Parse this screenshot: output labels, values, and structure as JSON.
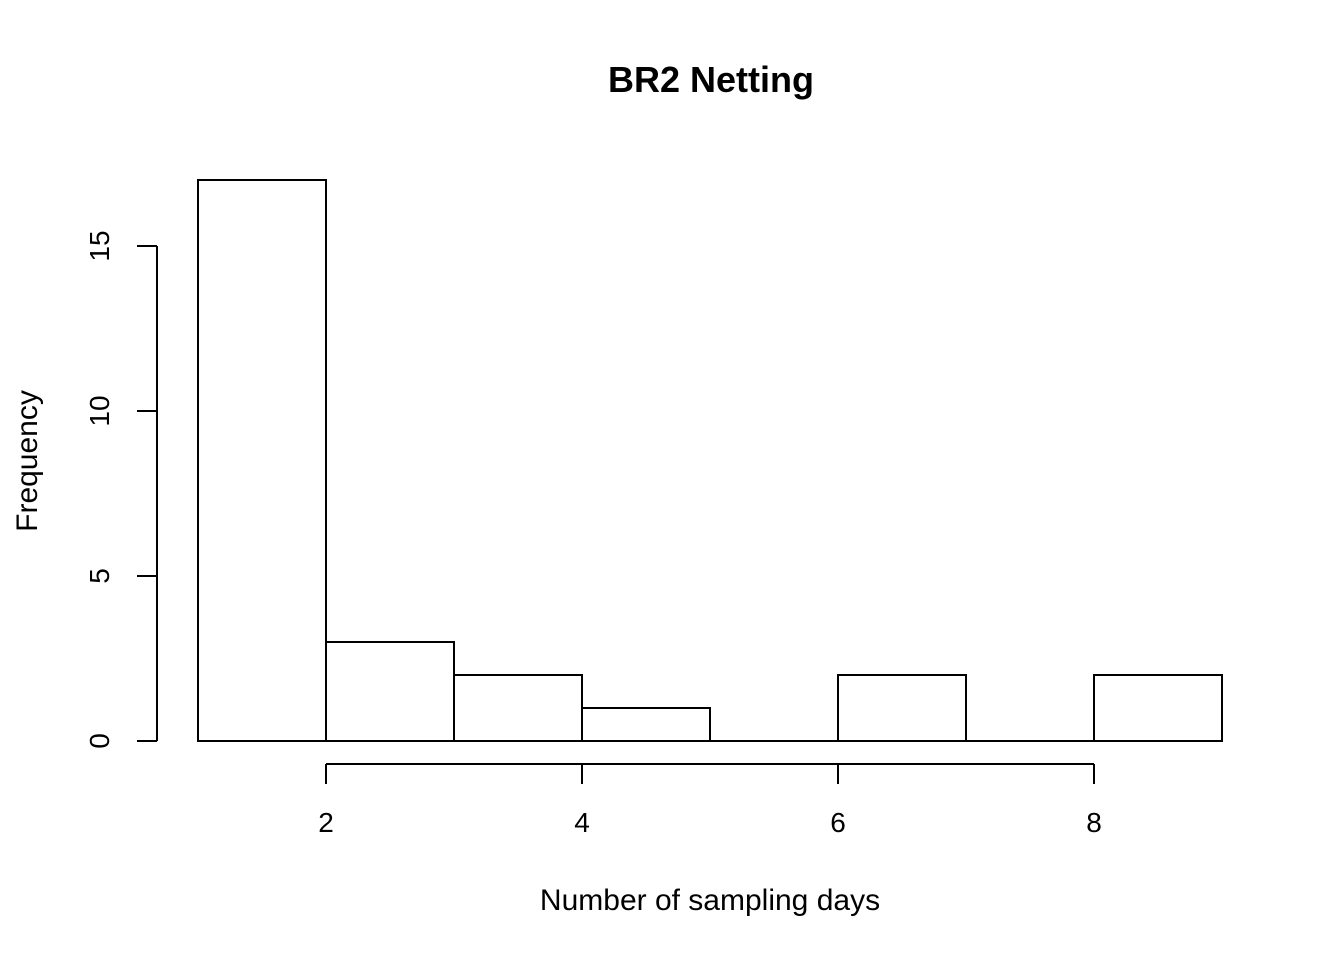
{
  "chart_data": {
    "type": "bar",
    "title": "BR2 Netting",
    "xlabel": "Number of sampling days",
    "ylabel": "Frequency",
    "bins": [
      {
        "start": 1,
        "end": 2,
        "count": 17
      },
      {
        "start": 2,
        "end": 3,
        "count": 3
      },
      {
        "start": 3,
        "end": 4,
        "count": 2
      },
      {
        "start": 4,
        "end": 5,
        "count": 1
      },
      {
        "start": 5,
        "end": 6,
        "count": 0
      },
      {
        "start": 6,
        "end": 7,
        "count": 2
      },
      {
        "start": 7,
        "end": 8,
        "count": 0
      },
      {
        "start": 8,
        "end": 9,
        "count": 2
      }
    ],
    "xlim": [
      1,
      9
    ],
    "ylim": [
      0,
      17
    ],
    "x_ticks": [
      2,
      4,
      6,
      8
    ],
    "y_ticks": [
      0,
      5,
      10,
      15
    ],
    "colors": {
      "bar_fill": "#ffffff",
      "bar_stroke": "#000000"
    },
    "grid": false,
    "legend": "none"
  }
}
